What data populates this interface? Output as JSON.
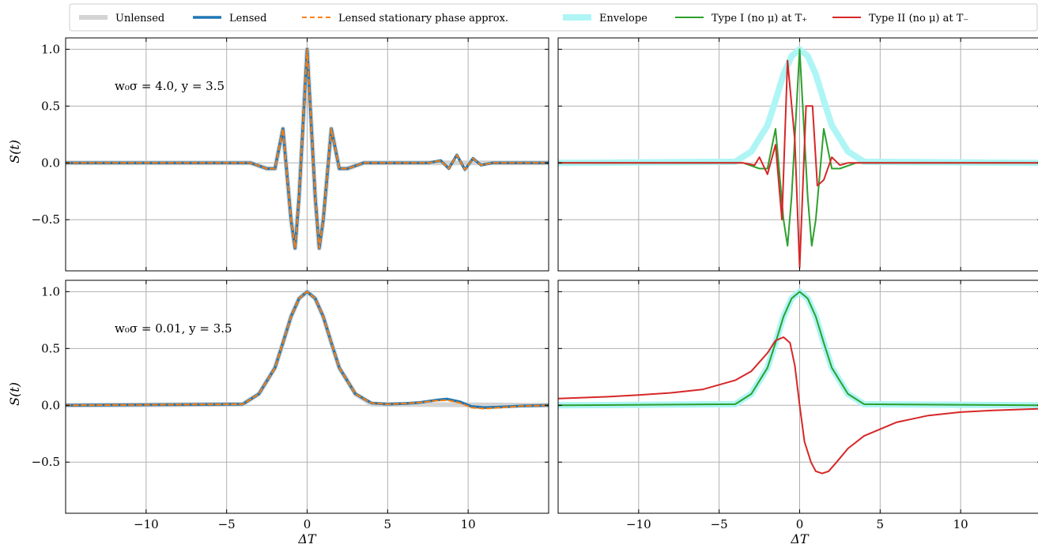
{
  "chart_data": {
    "type": "line",
    "legend": {
      "placement": "top",
      "entries": [
        {
          "label": "Unlensed",
          "color": "#d3d3d3",
          "style": "solid-thick"
        },
        {
          "label": "Lensed",
          "color": "#1f77b4",
          "style": "solid"
        },
        {
          "label": "Lensed stationary phase approx.",
          "color": "#ff7f0e",
          "style": "dashed"
        },
        {
          "label": "Envelope",
          "color": "#aff5f5",
          "style": "solid-thick"
        },
        {
          "label": "Type I (no μ) at T₊",
          "color": "#2ca02c",
          "style": "solid"
        },
        {
          "label": "Type II (no μ) at T₋",
          "color": "#d62728",
          "style": "solid"
        }
      ]
    },
    "grid": true,
    "xlim": [
      -15,
      15
    ],
    "ylim": [
      -0.95,
      1.1
    ],
    "xticks": [
      -10,
      -5,
      0,
      5,
      10
    ],
    "xtick_labels": [
      "−10",
      "−5",
      "0",
      "5",
      "10"
    ],
    "yticks": [
      1.0,
      0.5,
      0.0,
      -0.5
    ],
    "ytick_labels": [
      "1.0",
      "0.5",
      "0.0",
      "−0.5"
    ],
    "xlabel": "ΔT",
    "ylabel": "S(t)",
    "panels": [
      {
        "position": "top-left",
        "annotation": "w₀σ = 4.0, y = 3.5",
        "series": [
          {
            "name": "Unlensed",
            "x": [
              -15,
              -3.5,
              -2.5,
              -2,
              -1.5,
              -1,
              -0.75,
              -0.5,
              0,
              0.5,
              0.75,
              1,
              1.5,
              2,
              2.5,
              3.5,
              15
            ],
            "y": [
              0,
              0,
              -0.05,
              -0.05,
              0.3,
              -0.5,
              -0.75,
              -0.3,
              1.0,
              -0.3,
              -0.75,
              -0.5,
              0.3,
              -0.05,
              -0.05,
              0,
              0
            ]
          },
          {
            "name": "Lensed",
            "x": [
              -15,
              -3.5,
              -2.5,
              -2,
              -1.5,
              -1,
              -0.75,
              -0.5,
              0,
              0.5,
              0.75,
              1,
              1.5,
              2,
              2.5,
              3.5,
              7.5,
              8.3,
              8.8,
              9.3,
              9.8,
              10.3,
              10.8,
              11.5,
              15
            ],
            "y": [
              0,
              0,
              -0.05,
              -0.05,
              0.3,
              -0.5,
              -0.75,
              -0.3,
              1.0,
              -0.3,
              -0.75,
              -0.5,
              0.3,
              -0.05,
              -0.05,
              0,
              0,
              0.02,
              -0.05,
              0.07,
              -0.06,
              0.04,
              -0.02,
              0,
              0
            ]
          },
          {
            "name": "Lensed stationary phase approx.",
            "x": [
              -15,
              -3.5,
              -2.5,
              -2,
              -1.5,
              -1,
              -0.75,
              -0.5,
              0,
              0.5,
              0.75,
              1,
              1.5,
              2,
              2.5,
              3.5,
              7.5,
              8.3,
              8.8,
              9.3,
              9.8,
              10.3,
              10.8,
              11.5,
              15
            ],
            "y": [
              0,
              0,
              -0.05,
              -0.05,
              0.3,
              -0.5,
              -0.75,
              -0.3,
              1.0,
              -0.3,
              -0.75,
              -0.5,
              0.3,
              -0.05,
              -0.05,
              0,
              0,
              0.02,
              -0.05,
              0.07,
              -0.06,
              0.04,
              -0.02,
              0,
              0
            ]
          }
        ]
      },
      {
        "position": "top-right",
        "annotation": "",
        "series": [
          {
            "name": "Envelope",
            "x": [
              -15,
              -4,
              -3,
              -2,
              -1.5,
              -1,
              -0.5,
              0,
              0.5,
              1,
              1.5,
              2,
              3,
              4,
              15
            ],
            "y": [
              0,
              0.01,
              0.1,
              0.33,
              0.55,
              0.78,
              0.94,
              1.0,
              0.94,
              0.78,
              0.55,
              0.33,
              0.1,
              0.01,
              0
            ]
          },
          {
            "name": "Type I (no μ) at T₊",
            "x": [
              -15,
              -3.5,
              -2.5,
              -2,
              -1.5,
              -1,
              -0.75,
              -0.5,
              0,
              0.5,
              0.75,
              1,
              1.5,
              2,
              2.5,
              3.5,
              15
            ],
            "y": [
              0,
              0,
              -0.05,
              -0.05,
              0.3,
              -0.5,
              -0.73,
              -0.3,
              1.0,
              -0.3,
              -0.73,
              -0.5,
              0.3,
              -0.05,
              -0.05,
              0,
              0
            ]
          },
          {
            "name": "Type II (no μ) at T₋",
            "x": [
              -15,
              -3.5,
              -2.8,
              -2.5,
              -2,
              -1.5,
              -1.1,
              -0.75,
              -0.3,
              0,
              0.4,
              0.8,
              1.1,
              1.5,
              2,
              2.5,
              3,
              3.5,
              15
            ],
            "y": [
              0,
              0,
              -0.02,
              0.05,
              -0.1,
              0.16,
              -0.5,
              0.9,
              0.2,
              -0.92,
              0.5,
              0.5,
              -0.2,
              -0.15,
              0.05,
              -0.02,
              0,
              0,
              0
            ]
          }
        ]
      },
      {
        "position": "bottom-left",
        "annotation": "w₀σ = 0.01, y = 3.5",
        "series": [
          {
            "name": "Unlensed",
            "x": [
              -15,
              -4,
              -3,
              -2,
              -1.5,
              -1,
              -0.5,
              0,
              0.5,
              1,
              1.5,
              2,
              3,
              4,
              15
            ],
            "y": [
              0,
              0.01,
              0.1,
              0.33,
              0.55,
              0.78,
              0.94,
              1.0,
              0.94,
              0.78,
              0.55,
              0.33,
              0.1,
              0.01,
              0
            ]
          },
          {
            "name": "Lensed",
            "x": [
              -15,
              -4,
              -3,
              -2,
              -1.5,
              -1,
              -0.5,
              0,
              0.5,
              1,
              1.5,
              2,
              3,
              4,
              5,
              6,
              7,
              8,
              8.7,
              9.5,
              10.2,
              11,
              12,
              13.5,
              15
            ],
            "y": [
              0,
              0.01,
              0.1,
              0.33,
              0.55,
              0.78,
              0.94,
              1.0,
              0.94,
              0.78,
              0.55,
              0.33,
              0.1,
              0.02,
              0.01,
              0.015,
              0.025,
              0.045,
              0.055,
              0.03,
              -0.01,
              -0.02,
              -0.015,
              -0.005,
              0
            ]
          },
          {
            "name": "Lensed stationary phase approx.",
            "x": [
              -15,
              -4,
              -3,
              -2,
              -1.5,
              -1,
              -0.5,
              0,
              0.5,
              1,
              1.5,
              2,
              3,
              4,
              5,
              6,
              7,
              8,
              8.7,
              9.5,
              10.2,
              11,
              12,
              13.5,
              15
            ],
            "y": [
              0,
              0.01,
              0.1,
              0.33,
              0.55,
              0.78,
              0.94,
              1.0,
              0.94,
              0.78,
              0.55,
              0.33,
              0.1,
              0.02,
              0.01,
              0.015,
              0.025,
              0.04,
              0.045,
              0.02,
              -0.02,
              -0.03,
              -0.02,
              -0.005,
              0
            ]
          }
        ]
      },
      {
        "position": "bottom-right",
        "annotation": "",
        "series": [
          {
            "name": "Envelope",
            "x": [
              -15,
              -4,
              -3,
              -2,
              -1.5,
              -1,
              -0.5,
              0,
              0.5,
              1,
              1.5,
              2,
              3,
              4,
              15
            ],
            "y": [
              0,
              0.01,
              0.1,
              0.33,
              0.55,
              0.78,
              0.94,
              1.0,
              0.94,
              0.78,
              0.55,
              0.33,
              0.1,
              0.01,
              0
            ]
          },
          {
            "name": "Type I (no μ) at T₊",
            "x": [
              -15,
              -4,
              -3,
              -2,
              -1.5,
              -1,
              -0.5,
              0,
              0.5,
              1,
              1.5,
              2,
              3,
              4,
              15
            ],
            "y": [
              0,
              0.01,
              0.1,
              0.33,
              0.55,
              0.78,
              0.94,
              1.0,
              0.94,
              0.78,
              0.55,
              0.33,
              0.1,
              0.01,
              0
            ]
          },
          {
            "name": "Type II (no μ) at T₋",
            "x": [
              -15,
              -12,
              -10,
              -8,
              -6,
              -4,
              -3,
              -2,
              -1.5,
              -1,
              -0.6,
              -0.3,
              0,
              0.3,
              0.7,
              1,
              1.4,
              1.8,
              2.3,
              3,
              4,
              6,
              8,
              10,
              12,
              15
            ],
            "y": [
              0.06,
              0.075,
              0.09,
              0.11,
              0.14,
              0.22,
              0.3,
              0.46,
              0.57,
              0.6,
              0.55,
              0.35,
              0.0,
              -0.32,
              -0.5,
              -0.58,
              -0.6,
              -0.58,
              -0.5,
              -0.38,
              -0.27,
              -0.15,
              -0.09,
              -0.06,
              -0.045,
              -0.03
            ]
          }
        ]
      }
    ]
  }
}
